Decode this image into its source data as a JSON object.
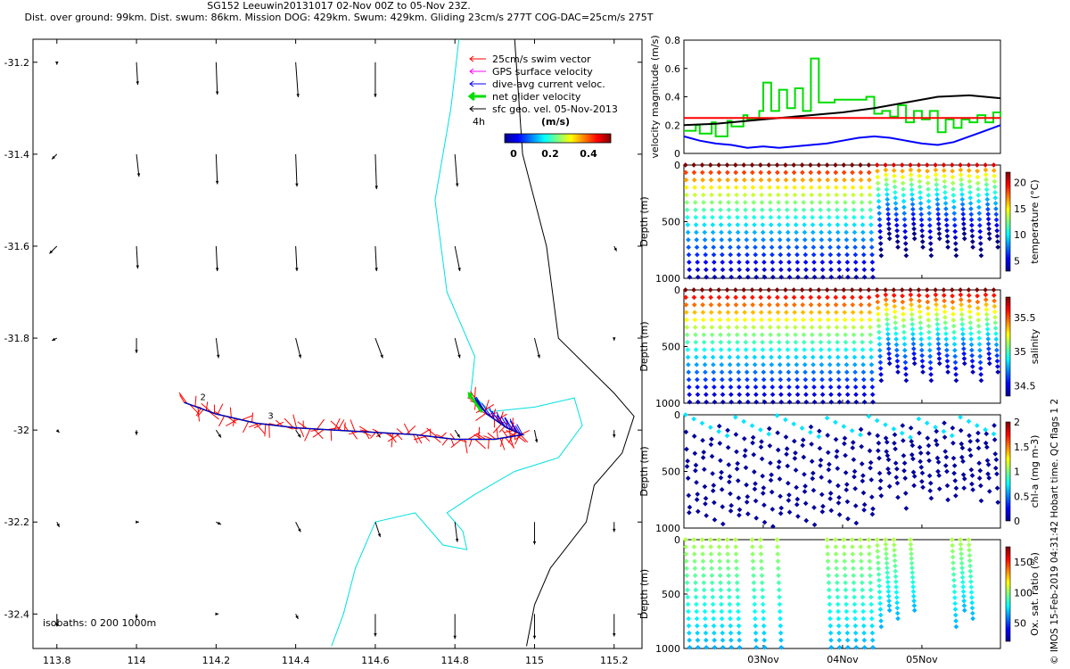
{
  "header": {
    "line1": "SG152 Leeuwin20131017 02-Nov 00Z to 05-Nov 23Z.",
    "line2": "Dist. over ground: 99km. Dist. swum: 86km. Mission DOG: 429km. Swum: 429km. Gliding 23cm/s 277T COG-DAC=25cm/s 275T"
  },
  "credit": "© IMOS 15-Feb-2019 04:31:42 Hobart time. QC flags 1  2",
  "colors": {
    "swim": "#ff0000",
    "gps": "#ff00ff",
    "dac": "#0000ff",
    "net": "#00dd00",
    "geo": "#000000",
    "coast": "#00e0e0",
    "isobath": "#000000",
    "refline": "#ff0000"
  },
  "chart_data": [
    {
      "type": "map",
      "title": "Glider track with velocity vectors",
      "x_ticks": [
        "113.8",
        "114",
        "114.2",
        "114.4",
        "114.6",
        "114.8",
        "115",
        "115.2"
      ],
      "y_ticks": [
        "-31.2",
        "-31.4",
        "-31.6",
        "-31.8",
        "-32",
        "-32.2",
        "-32.4"
      ],
      "xlim": [
        113.74,
        115.27
      ],
      "ylim": [
        -32.475,
        -31.15
      ],
      "legend": [
        {
          "label": "25cm/s swim vector",
          "color": "#ff0000"
        },
        {
          "label": "GPS surface velocity",
          "color": "#ff00ff"
        },
        {
          "label": "dive-avg current veloc.",
          "color": "#0000ff"
        },
        {
          "label": "net glider velocity",
          "color": "#00dd00"
        },
        {
          "label": "sfc geo. vel. 05-Nov-2013",
          "color": "#000000"
        }
      ],
      "scale_label": "4h",
      "colorbar_title": "(m/s)",
      "colorbar_ticks": [
        "0",
        "0.2",
        "0.4"
      ],
      "isobath_label": "isobaths: 0   200  1000m",
      "track": [
        [
          114.12,
          -31.94
        ],
        [
          114.2,
          -31.965
        ],
        [
          114.3,
          -31.985
        ],
        [
          114.4,
          -31.995
        ],
        [
          114.5,
          -32.0
        ],
        [
          114.6,
          -32.005
        ],
        [
          114.7,
          -32.01
        ],
        [
          114.8,
          -32.02
        ],
        [
          114.9,
          -32.02
        ],
        [
          114.97,
          -32.01
        ],
        [
          114.93,
          -31.995
        ],
        [
          114.88,
          -31.965
        ],
        [
          114.85,
          -31.93
        ]
      ],
      "day_labels": [
        {
          "text": "2",
          "lon": 114.16,
          "lat": -31.935
        },
        {
          "text": "3",
          "lon": 114.33,
          "lat": -31.975
        }
      ],
      "geo_vectors": [
        {
          "lon": 113.8,
          "lat": -31.2,
          "u": 0.0,
          "v": -0.1
        },
        {
          "lon": 114.0,
          "lat": -31.2,
          "u": 0.05,
          "v": -0.9
        },
        {
          "lon": 114.2,
          "lat": -31.2,
          "u": 0.05,
          "v": -1.3
        },
        {
          "lon": 114.4,
          "lat": -31.2,
          "u": 0.1,
          "v": -1.4
        },
        {
          "lon": 114.6,
          "lat": -31.2,
          "u": 0.0,
          "v": -1.4
        },
        {
          "lon": 113.8,
          "lat": -31.4,
          "u": -0.2,
          "v": -0.2
        },
        {
          "lon": 114.0,
          "lat": -31.4,
          "u": 0.1,
          "v": -0.9
        },
        {
          "lon": 114.2,
          "lat": -31.4,
          "u": 0.05,
          "v": -1.2
        },
        {
          "lon": 114.4,
          "lat": -31.4,
          "u": 0.05,
          "v": -1.3
        },
        {
          "lon": 114.6,
          "lat": -31.4,
          "u": 0.05,
          "v": -1.4
        },
        {
          "lon": 114.8,
          "lat": -31.4,
          "u": 0.1,
          "v": -1.3
        },
        {
          "lon": 113.8,
          "lat": -31.6,
          "u": -0.3,
          "v": -0.3
        },
        {
          "lon": 114.0,
          "lat": -31.6,
          "u": 0.05,
          "v": -0.9
        },
        {
          "lon": 114.2,
          "lat": -31.6,
          "u": 0.05,
          "v": -1.0
        },
        {
          "lon": 114.4,
          "lat": -31.6,
          "u": 0.05,
          "v": -1.0
        },
        {
          "lon": 114.6,
          "lat": -31.6,
          "u": 0.05,
          "v": -1.0
        },
        {
          "lon": 114.8,
          "lat": -31.6,
          "u": 0.2,
          "v": -1.0
        },
        {
          "lon": 115.2,
          "lat": -31.6,
          "u": 0.1,
          "v": -0.2
        },
        {
          "lon": 113.8,
          "lat": -31.8,
          "u": -0.2,
          "v": -0.1
        },
        {
          "lon": 114.0,
          "lat": -31.8,
          "u": 0.0,
          "v": -0.6
        },
        {
          "lon": 114.2,
          "lat": -31.8,
          "u": 0.1,
          "v": -0.8
        },
        {
          "lon": 114.4,
          "lat": -31.8,
          "u": 0.2,
          "v": -0.8
        },
        {
          "lon": 114.6,
          "lat": -31.8,
          "u": 0.3,
          "v": -0.8
        },
        {
          "lon": 114.8,
          "lat": -31.8,
          "u": 0.2,
          "v": -0.8
        },
        {
          "lon": 115.0,
          "lat": -31.8,
          "u": 0.2,
          "v": -0.8
        },
        {
          "lon": 115.2,
          "lat": -31.8,
          "u": 0.0,
          "v": -0.1
        },
        {
          "lon": 113.8,
          "lat": -32.0,
          "u": 0.1,
          "v": -0.1
        },
        {
          "lon": 114.0,
          "lat": -32.0,
          "u": 0.0,
          "v": -0.2
        },
        {
          "lon": 114.2,
          "lat": -32.0,
          "u": 0.2,
          "v": -0.3
        },
        {
          "lon": 114.4,
          "lat": -32.0,
          "u": 0.2,
          "v": -0.3
        },
        {
          "lon": 114.6,
          "lat": -32.0,
          "u": 0.2,
          "v": -0.3
        },
        {
          "lon": 114.8,
          "lat": -32.0,
          "u": 0.2,
          "v": -0.3
        },
        {
          "lon": 115.0,
          "lat": -32.0,
          "u": 0.1,
          "v": -0.5
        },
        {
          "lon": 115.2,
          "lat": -32.0,
          "u": 0.0,
          "v": -0.3
        },
        {
          "lon": 113.8,
          "lat": -32.2,
          "u": 0.1,
          "v": -0.2
        },
        {
          "lon": 114.0,
          "lat": -32.2,
          "u": 0.1,
          "v": 0.0
        },
        {
          "lon": 114.2,
          "lat": -32.2,
          "u": 0.2,
          "v": -0.1
        },
        {
          "lon": 114.4,
          "lat": -32.2,
          "u": 0.2,
          "v": -0.4
        },
        {
          "lon": 114.6,
          "lat": -32.2,
          "u": 0.2,
          "v": -0.6
        },
        {
          "lon": 114.8,
          "lat": -32.2,
          "u": 0.1,
          "v": -0.8
        },
        {
          "lon": 115.0,
          "lat": -32.2,
          "u": 0.0,
          "v": -0.9
        },
        {
          "lon": 115.2,
          "lat": -32.2,
          "u": 0.0,
          "v": -0.4
        },
        {
          "lon": 113.8,
          "lat": -32.4,
          "u": 0.0,
          "v": -0.5
        },
        {
          "lon": 114.0,
          "lat": -32.4,
          "u": 0.0,
          "v": -0.2
        },
        {
          "lon": 114.2,
          "lat": -32.4,
          "u": 0.1,
          "v": 0.0
        },
        {
          "lon": 114.4,
          "lat": -32.4,
          "u": 0.1,
          "v": -0.2
        },
        {
          "lon": 114.6,
          "lat": -32.4,
          "u": 0.0,
          "v": -0.9
        },
        {
          "lon": 114.8,
          "lat": -32.4,
          "u": 0.0,
          "v": -1.0
        },
        {
          "lon": 115.0,
          "lat": -32.4,
          "u": 0.0,
          "v": -1.0
        },
        {
          "lon": 115.2,
          "lat": -32.4,
          "u": 0.0,
          "v": -0.9
        }
      ],
      "coast": [
        [
          114.81,
          -31.15
        ],
        [
          114.79,
          -31.3
        ],
        [
          114.75,
          -31.5
        ],
        [
          114.78,
          -31.7
        ],
        [
          114.85,
          -31.84
        ],
        [
          114.84,
          -31.92
        ],
        [
          114.89,
          -31.96
        ],
        [
          115.0,
          -31.95
        ],
        [
          115.1,
          -31.93
        ],
        [
          115.12,
          -31.99
        ],
        [
          115.06,
          -32.06
        ],
        [
          114.95,
          -32.09
        ],
        [
          114.85,
          -32.14
        ],
        [
          114.78,
          -32.18
        ],
        [
          114.82,
          -32.22
        ],
        [
          114.83,
          -32.26
        ],
        [
          114.77,
          -32.25
        ],
        [
          114.7,
          -32.18
        ],
        [
          114.6,
          -32.2
        ],
        [
          114.55,
          -32.3
        ],
        [
          114.52,
          -32.4
        ],
        [
          114.49,
          -32.47
        ]
      ],
      "isobath": [
        [
          114.95,
          -31.15
        ],
        [
          114.97,
          -31.4
        ],
        [
          115.03,
          -31.6
        ],
        [
          115.06,
          -31.8
        ],
        [
          115.2,
          -31.92
        ],
        [
          115.25,
          -31.97
        ],
        [
          115.22,
          -32.05
        ],
        [
          115.15,
          -32.12
        ],
        [
          115.13,
          -32.2
        ],
        [
          115.04,
          -32.3
        ],
        [
          115.0,
          -32.38
        ],
        [
          114.98,
          -32.47
        ]
      ]
    },
    {
      "type": "line",
      "ylabel": "velocity magnitude (m/s)",
      "ylim": [
        0,
        0.8
      ],
      "yticks": [
        "0",
        "0.2",
        "0.4",
        "0.6",
        "0.8"
      ],
      "x_range_days": [
        2.0,
        5.99
      ],
      "series": [
        {
          "name": "net glider velocity",
          "color": "#00dd00",
          "x": [
            2.0,
            2.15,
            2.2,
            2.35,
            2.4,
            2.55,
            2.6,
            2.75,
            2.8,
            2.95,
            3.0,
            3.1,
            3.2,
            3.3,
            3.4,
            3.5,
            3.6,
            3.7,
            3.8,
            3.9,
            4.0,
            4.1,
            4.2,
            4.3,
            4.4,
            4.5,
            4.6,
            4.7,
            4.8,
            4.9,
            5.0,
            5.1,
            5.2,
            5.3,
            5.4,
            5.5,
            5.6,
            5.7,
            5.8,
            5.9,
            5.99
          ],
          "values": [
            0.16,
            0.2,
            0.14,
            0.22,
            0.12,
            0.23,
            0.19,
            0.27,
            0.24,
            0.3,
            0.5,
            0.3,
            0.45,
            0.32,
            0.46,
            0.3,
            0.67,
            0.36,
            0.36,
            0.38,
            0.38,
            0.38,
            0.38,
            0.4,
            0.28,
            0.3,
            0.26,
            0.34,
            0.22,
            0.3,
            0.24,
            0.3,
            0.15,
            0.24,
            0.18,
            0.24,
            0.22,
            0.27,
            0.22,
            0.29,
            0.26
          ]
        },
        {
          "name": "dive-avg current",
          "color": "#0000ff",
          "x": [
            2.0,
            2.2,
            2.4,
            2.6,
            2.8,
            3.0,
            3.2,
            3.4,
            3.6,
            3.8,
            4.0,
            4.2,
            4.4,
            4.6,
            4.8,
            5.0,
            5.2,
            5.4,
            5.6,
            5.8,
            5.99
          ],
          "values": [
            0.12,
            0.09,
            0.07,
            0.06,
            0.04,
            0.05,
            0.04,
            0.05,
            0.06,
            0.07,
            0.09,
            0.11,
            0.12,
            0.11,
            0.09,
            0.07,
            0.06,
            0.08,
            0.12,
            0.16,
            0.2
          ]
        },
        {
          "name": "sfc geo. vel.",
          "color": "#000000",
          "x": [
            2.0,
            2.4,
            2.8,
            3.2,
            3.6,
            4.0,
            4.4,
            4.8,
            5.2,
            5.6,
            5.99
          ],
          "values": [
            0.2,
            0.21,
            0.23,
            0.25,
            0.27,
            0.29,
            0.32,
            0.36,
            0.4,
            0.41,
            0.39
          ]
        },
        {
          "name": "25cm/s reference",
          "color": "#ff0000",
          "x": [
            2.0,
            5.99
          ],
          "values": [
            0.25,
            0.25
          ]
        }
      ]
    },
    {
      "type": "scatter",
      "ylabel": "temperature (°C)",
      "depth_label": "Depth (m)",
      "ylim": [
        0,
        1000
      ],
      "yticks": [
        "0",
        "500",
        "1000"
      ],
      "cbar_ticks": [
        "20",
        "15",
        "10",
        "5"
      ],
      "clim": [
        3,
        22
      ]
    },
    {
      "type": "scatter",
      "ylabel": "salinity",
      "depth_label": "Depth (m)",
      "ylim": [
        0,
        1000
      ],
      "yticks": [
        "0",
        "500",
        "1000"
      ],
      "cbar_ticks": [
        "35.5",
        "35",
        "34.5"
      ],
      "clim": [
        34.35,
        35.8
      ]
    },
    {
      "type": "scatter",
      "ylabel": "chl-a (mg m-3)",
      "depth_label": "Depth (m)",
      "ylim": [
        0,
        1000
      ],
      "yticks": [
        "0",
        "500",
        "1000"
      ],
      "cbar_ticks": [
        "2",
        "1.5",
        "1",
        "0.5",
        "0"
      ],
      "clim": [
        0,
        2
      ]
    },
    {
      "type": "scatter",
      "ylabel": "Ox. sat. ratio (%)",
      "depth_label": "Depth (m)",
      "ylim": [
        0,
        1000
      ],
      "yticks": [
        "0",
        "500",
        "1000"
      ],
      "cbar_ticks": [
        "150",
        "100",
        "50"
      ],
      "clim": [
        20,
        175
      ],
      "x_ticks": [
        "03Nov",
        "04Nov",
        "05Nov"
      ]
    }
  ]
}
